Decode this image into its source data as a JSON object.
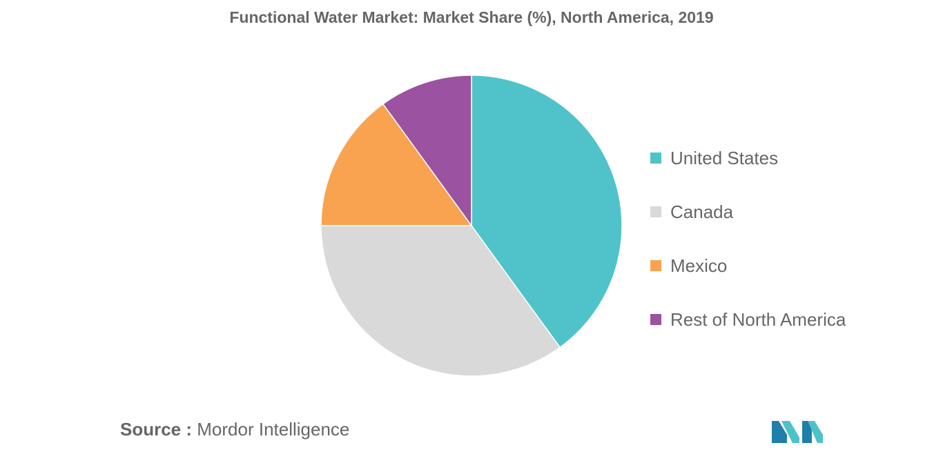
{
  "title": "Functional Water Market: Market Share (%), North America, 2019",
  "source": {
    "prefix": "Source :",
    "text": "Mordor Intelligence"
  },
  "logo": {
    "name": "mordor-intelligence-logo",
    "colors": [
      "#1f7fa8",
      "#4fc1c9"
    ]
  },
  "chart_data": {
    "type": "pie",
    "title": "Functional Water Market: Market Share (%), North America, 2019",
    "start_angle_deg": 0,
    "direction": "clockwise",
    "legend_position": "right",
    "slices": [
      {
        "label": "United States",
        "value": 40,
        "color": "#4fc3c9"
      },
      {
        "label": "Canada",
        "value": 35,
        "color": "#d9d9d9"
      },
      {
        "label": "Mexico",
        "value": 15,
        "color": "#f9a350"
      },
      {
        "label": "Rest of North America",
        "value": 10,
        "color": "#9b52a0"
      }
    ]
  }
}
